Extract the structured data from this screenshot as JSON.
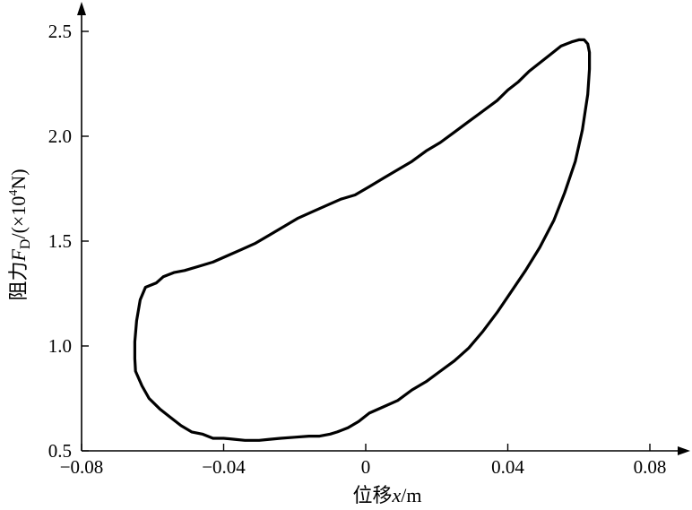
{
  "chart_data": {
    "type": "line",
    "title": "",
    "xlabel_prefix": "位移",
    "xlabel_var": "x",
    "xlabel_unit": "/m",
    "ylabel_prefix": "阻力",
    "ylabel_var": "F",
    "ylabel_sub": "D",
    "ylabel_unit_pre": "/(×10",
    "ylabel_exp": "4",
    "ylabel_unit_post": "N)",
    "xlim": [
      -0.08,
      0.08
    ],
    "ylim": [
      0.5,
      2.5
    ],
    "x_ticks": [
      -0.08,
      -0.04,
      0,
      0.04,
      0.08
    ],
    "x_tick_labels": [
      "−0.08",
      "−0.04",
      "0",
      "0.04",
      "0.08"
    ],
    "y_ticks": [
      0.5,
      1.0,
      1.5,
      2.0,
      2.5
    ],
    "y_tick_labels": [
      "0.5",
      "1.0",
      "1.5",
      "2.0",
      "2.5"
    ],
    "grid": false,
    "series": [
      {
        "color": "#000000",
        "x": [
          -0.059,
          -0.062,
          -0.0635,
          -0.0645,
          -0.065,
          -0.065,
          -0.0648,
          -0.063,
          -0.061,
          -0.058,
          -0.055,
          -0.052,
          -0.049,
          -0.046,
          -0.043,
          -0.04,
          -0.037,
          -0.034,
          -0.03,
          -0.027,
          -0.024,
          -0.02,
          -0.016,
          -0.013,
          -0.01,
          -0.008,
          -0.005,
          -0.002,
          0.001,
          0.005,
          0.009,
          0.013,
          0.017,
          0.021,
          0.025,
          0.029,
          0.033,
          0.037,
          0.041,
          0.045,
          0.049,
          0.053,
          0.056,
          0.059,
          0.061,
          0.0625,
          0.063,
          0.063,
          0.0625,
          0.0615,
          0.06,
          0.058,
          0.055,
          0.052,
          0.049,
          0.046,
          0.043,
          0.04,
          0.037,
          0.033,
          0.029,
          0.025,
          0.021,
          0.017,
          0.013,
          0.009,
          0.005,
          0.001,
          -0.003,
          -0.007,
          -0.011,
          -0.015,
          -0.019,
          -0.023,
          -0.027,
          -0.031,
          -0.035,
          -0.039,
          -0.043,
          -0.047,
          -0.051,
          -0.054,
          -0.057,
          -0.059
        ],
        "y": [
          1.3,
          1.28,
          1.22,
          1.12,
          1.02,
          0.94,
          0.88,
          0.81,
          0.75,
          0.7,
          0.66,
          0.62,
          0.59,
          0.58,
          0.56,
          0.56,
          0.555,
          0.55,
          0.55,
          0.555,
          0.56,
          0.565,
          0.57,
          0.57,
          0.58,
          0.59,
          0.61,
          0.64,
          0.68,
          0.71,
          0.74,
          0.79,
          0.83,
          0.88,
          0.93,
          0.99,
          1.07,
          1.16,
          1.26,
          1.36,
          1.47,
          1.6,
          1.73,
          1.88,
          2.03,
          2.2,
          2.32,
          2.4,
          2.44,
          2.46,
          2.46,
          2.45,
          2.43,
          2.39,
          2.35,
          2.31,
          2.26,
          2.22,
          2.17,
          2.12,
          2.07,
          2.02,
          1.97,
          1.93,
          1.88,
          1.84,
          1.8,
          1.76,
          1.72,
          1.7,
          1.67,
          1.64,
          1.61,
          1.57,
          1.53,
          1.49,
          1.46,
          1.43,
          1.4,
          1.38,
          1.36,
          1.35,
          1.33,
          1.3
        ]
      }
    ]
  }
}
